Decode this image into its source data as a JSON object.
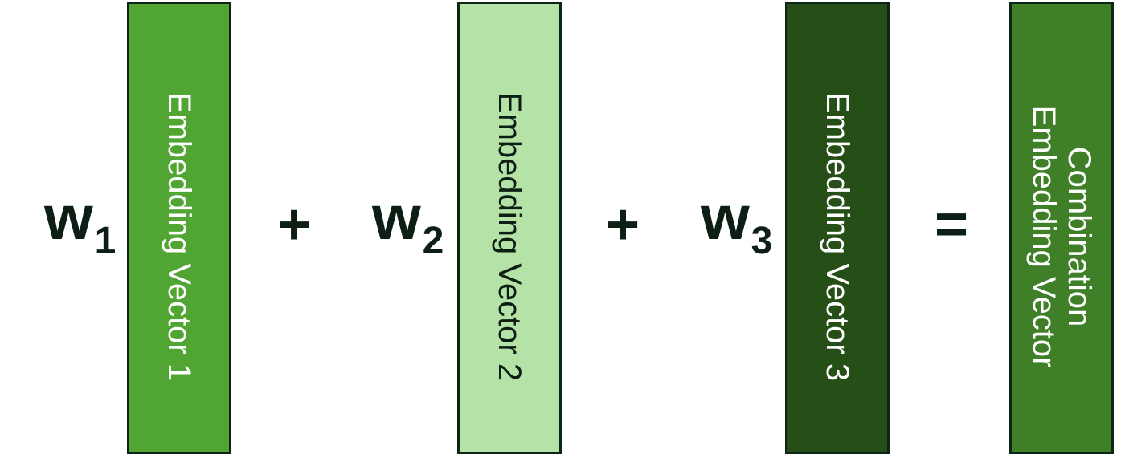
{
  "terms": [
    {
      "weight": "w",
      "subscript": "1",
      "box_label": "Embedding Vector 1",
      "box_color": "#51a533",
      "text_color": "#ffffff"
    },
    {
      "weight": "w",
      "subscript": "2",
      "box_label": "Embedding Vector 2",
      "box_color": "#b5e3a7",
      "text_color": "#0d1f14"
    },
    {
      "weight": "w",
      "subscript": "3",
      "box_label": "Embedding Vector 3",
      "box_color": "#264f18",
      "text_color": "#ffffff"
    }
  ],
  "operators": {
    "plus_1": "+",
    "plus_2": "+",
    "equals": "="
  },
  "result": {
    "box_label": "Combination Embedding Vector",
    "box_color": "#3f7f27",
    "text_color": "#ffffff"
  }
}
